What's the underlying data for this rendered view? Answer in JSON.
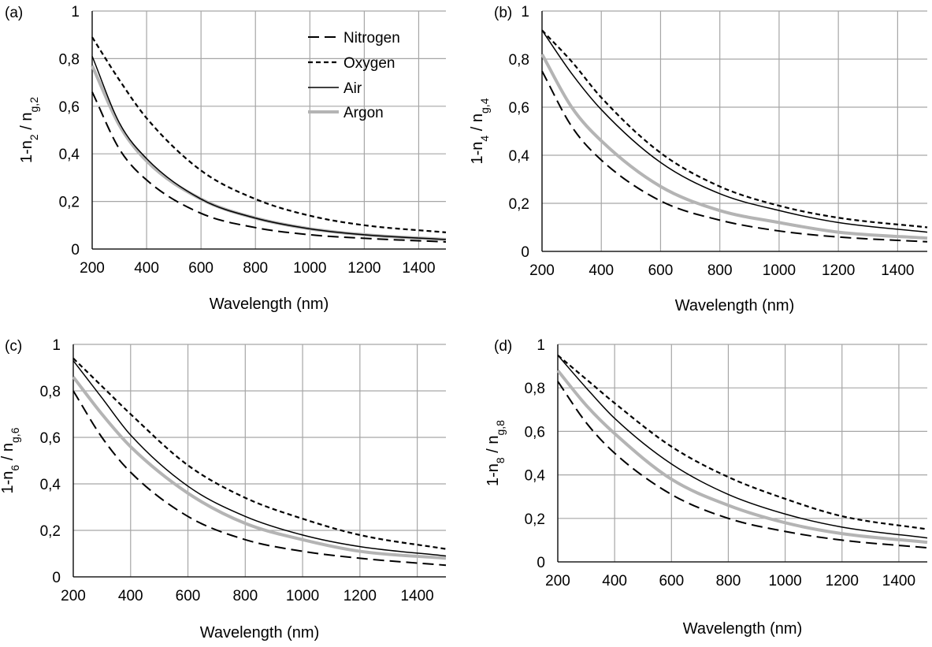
{
  "colors": {
    "nitrogen": "#000000",
    "oxygen": "#000000",
    "air": "#000000",
    "argon": "#b4b4b4",
    "grid": "#a6a6a6"
  },
  "legend": [
    "Nitrogen",
    "Oxygen",
    "Air",
    "Argon"
  ],
  "chart_data": [
    {
      "panel": "(a)",
      "type": "line",
      "xlabel": "Wavelength (nm)",
      "ylabel_main": "1-n",
      "ylabel_sub1": "2",
      "ylabel_mid": " / n",
      "ylabel_sub2": "g,2",
      "xlim": [
        200,
        1500
      ],
      "ylim": [
        0,
        1
      ],
      "x_ticks": [
        "200",
        "400",
        "600",
        "800",
        "1000",
        "1200",
        "1400"
      ],
      "y_ticks": [
        "0",
        "0,2",
        "0,4",
        "0,6",
        "0,8",
        "1"
      ],
      "grid": true,
      "legend_position": "top-right",
      "x": [
        200,
        300,
        400,
        600,
        800,
        1000,
        1200,
        1500
      ],
      "series": [
        {
          "name": "Nitrogen",
          "style": "long-dash",
          "values": [
            0.66,
            0.42,
            0.29,
            0.15,
            0.09,
            0.06,
            0.045,
            0.03
          ]
        },
        {
          "name": "Oxygen",
          "style": "short-dash",
          "values": [
            0.89,
            0.71,
            0.55,
            0.33,
            0.21,
            0.14,
            0.1,
            0.07
          ]
        },
        {
          "name": "Air",
          "style": "solid-thin",
          "values": [
            0.81,
            0.53,
            0.38,
            0.21,
            0.13,
            0.085,
            0.06,
            0.04
          ]
        },
        {
          "name": "Argon",
          "style": "solid-gray",
          "values": [
            0.77,
            0.52,
            0.37,
            0.21,
            0.13,
            0.085,
            0.06,
            0.04
          ]
        }
      ]
    },
    {
      "panel": "(b)",
      "type": "line",
      "xlabel": "Wavelength (nm)",
      "ylabel_main": "1-n",
      "ylabel_sub1": "4",
      "ylabel_mid": " / n",
      "ylabel_sub2": "g,4",
      "xlim": [
        200,
        1500
      ],
      "ylim": [
        0,
        1
      ],
      "x_ticks": [
        "200",
        "400",
        "600",
        "800",
        "1000",
        "1200",
        "1400"
      ],
      "y_ticks": [
        "0",
        "0,2",
        "0,4",
        "0,6",
        "0,8",
        "1"
      ],
      "grid": true,
      "x": [
        200,
        300,
        400,
        600,
        800,
        1000,
        1200,
        1500
      ],
      "series": [
        {
          "name": "Nitrogen",
          "style": "long-dash",
          "values": [
            0.75,
            0.52,
            0.38,
            0.21,
            0.13,
            0.085,
            0.06,
            0.04
          ]
        },
        {
          "name": "Oxygen",
          "style": "short-dash",
          "values": [
            0.92,
            0.79,
            0.64,
            0.41,
            0.27,
            0.19,
            0.14,
            0.1
          ]
        },
        {
          "name": "Air",
          "style": "solid-thin",
          "values": [
            0.92,
            0.74,
            0.59,
            0.37,
            0.24,
            0.17,
            0.12,
            0.08
          ]
        },
        {
          "name": "Argon",
          "style": "solid-gray",
          "values": [
            0.82,
            0.6,
            0.46,
            0.27,
            0.17,
            0.12,
            0.08,
            0.055
          ]
        }
      ]
    },
    {
      "panel": "(c)",
      "type": "line",
      "xlabel": "Wavelength (nm)",
      "ylabel_main": "1-n",
      "ylabel_sub1": "6",
      "ylabel_mid": " / n",
      "ylabel_sub2": "g,6",
      "xlim": [
        200,
        1500
      ],
      "ylim": [
        0,
        1
      ],
      "x_ticks": [
        "200",
        "400",
        "600",
        "800",
        "1000",
        "1200",
        "1400"
      ],
      "y_ticks": [
        "0",
        "0,2",
        "0,4",
        "0,6",
        "0,8",
        "1"
      ],
      "grid": true,
      "x": [
        200,
        300,
        400,
        600,
        800,
        1000,
        1200,
        1500
      ],
      "series": [
        {
          "name": "Nitrogen",
          "style": "long-dash",
          "values": [
            0.8,
            0.6,
            0.45,
            0.26,
            0.16,
            0.11,
            0.08,
            0.05
          ]
        },
        {
          "name": "Oxygen",
          "style": "short-dash",
          "values": [
            0.94,
            0.82,
            0.7,
            0.48,
            0.34,
            0.25,
            0.18,
            0.12
          ]
        },
        {
          "name": "Air",
          "style": "solid-thin",
          "values": [
            0.93,
            0.77,
            0.61,
            0.39,
            0.26,
            0.18,
            0.13,
            0.09
          ]
        },
        {
          "name": "Argon",
          "style": "solid-gray",
          "values": [
            0.86,
            0.7,
            0.56,
            0.36,
            0.23,
            0.16,
            0.11,
            0.08
          ]
        }
      ]
    },
    {
      "panel": "(d)",
      "type": "line",
      "xlabel": "Wavelength (nm)",
      "ylabel_main": "1-n",
      "ylabel_sub1": "8",
      "ylabel_mid": " / n",
      "ylabel_sub2": "g,8",
      "xlim": [
        200,
        1500
      ],
      "ylim": [
        0,
        1
      ],
      "x_ticks": [
        "200",
        "400",
        "600",
        "800",
        "1000",
        "1200",
        "1400"
      ],
      "y_ticks": [
        "0",
        "0,2",
        "0,4",
        "0,6",
        "0,8",
        "1"
      ],
      "grid": true,
      "x": [
        200,
        300,
        400,
        600,
        800,
        1000,
        1200,
        1500
      ],
      "series": [
        {
          "name": "Nitrogen",
          "style": "long-dash",
          "values": [
            0.83,
            0.64,
            0.5,
            0.31,
            0.2,
            0.14,
            0.1,
            0.065
          ]
        },
        {
          "name": "Oxygen",
          "style": "short-dash",
          "values": [
            0.95,
            0.84,
            0.73,
            0.53,
            0.39,
            0.29,
            0.21,
            0.15
          ]
        },
        {
          "name": "Air",
          "style": "solid-thin",
          "values": [
            0.95,
            0.8,
            0.66,
            0.45,
            0.31,
            0.22,
            0.16,
            0.11
          ]
        },
        {
          "name": "Argon",
          "style": "solid-gray",
          "values": [
            0.88,
            0.72,
            0.59,
            0.38,
            0.26,
            0.18,
            0.13,
            0.09
          ]
        }
      ]
    }
  ]
}
